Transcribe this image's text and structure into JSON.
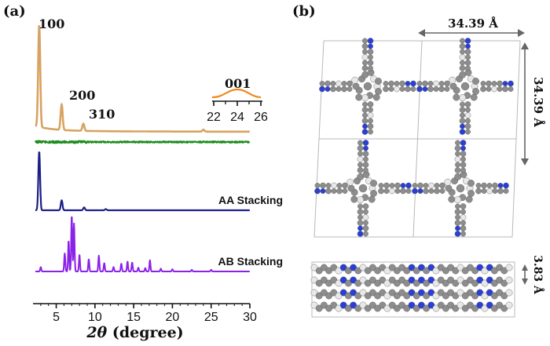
{
  "panel_a": {
    "label": "(a)",
    "peak_labels": [
      "100",
      "200",
      "310"
    ],
    "inset": {
      "label": "001",
      "ticks": [
        "22",
        "24",
        "26"
      ]
    },
    "trace_labels": [
      "AA Stacking",
      "AB Stacking"
    ],
    "xlabel_italic": "2θ",
    "xlabel_rest": " (degree)"
  },
  "panel_b": {
    "label": "(b)",
    "dim_horizontal": "34.39 Å",
    "dim_vertical": "34.39 Å",
    "dim_stacking": "3.83 Å"
  },
  "colors": {
    "experimental": "#e6a24a",
    "experimental_dots": "#9aa7c2",
    "difference": "#1e8c1e",
    "aa": "#1b1e86",
    "ab": "#8b22e8",
    "inset": "#f08a1c",
    "atom_c": "#8d8d8d",
    "atom_n": "#2b3fd6",
    "atom_h": "#e8e8e8"
  },
  "chart_data": {
    "type": "line",
    "title": "",
    "xlabel": "2θ (degree)",
    "ylabel": "",
    "xlim": [
      2,
      30
    ],
    "xticks": [
      5,
      10,
      15,
      20,
      25,
      30
    ],
    "grid": false,
    "series": [
      {
        "name": "",
        "peaks": [
          [
            2.8,
            1.0
          ],
          [
            5.7,
            0.25
          ],
          [
            8.5,
            0.07
          ],
          [
            24.0,
            0.02
          ]
        ]
      },
      {
        "name": "",
        "peaks": [
          [
            2.8,
            0.06
          ],
          [
            5.7,
            0.03
          ]
        ]
      },
      {
        "name": "AA Stacking",
        "peaks": [
          [
            2.8,
            1.0
          ],
          [
            5.7,
            0.17
          ],
          [
            8.6,
            0.05
          ],
          [
            11.4,
            0.02
          ]
        ]
      },
      {
        "name": "AB Stacking",
        "peaks": [
          [
            3.0,
            0.08
          ],
          [
            6.1,
            0.32
          ],
          [
            6.6,
            0.55
          ],
          [
            7.0,
            1.0
          ],
          [
            7.3,
            0.85
          ],
          [
            8.0,
            0.3
          ],
          [
            9.2,
            0.22
          ],
          [
            10.5,
            0.28
          ],
          [
            11.2,
            0.15
          ],
          [
            12.4,
            0.08
          ],
          [
            13.4,
            0.14
          ],
          [
            14.2,
            0.18
          ],
          [
            14.8,
            0.16
          ],
          [
            15.6,
            0.07
          ],
          [
            16.5,
            0.06
          ],
          [
            17.1,
            0.2
          ],
          [
            18.5,
            0.05
          ],
          [
            20.0,
            0.04
          ],
          [
            22.5,
            0.03
          ],
          [
            25.0,
            0.03
          ]
        ]
      }
    ]
  }
}
